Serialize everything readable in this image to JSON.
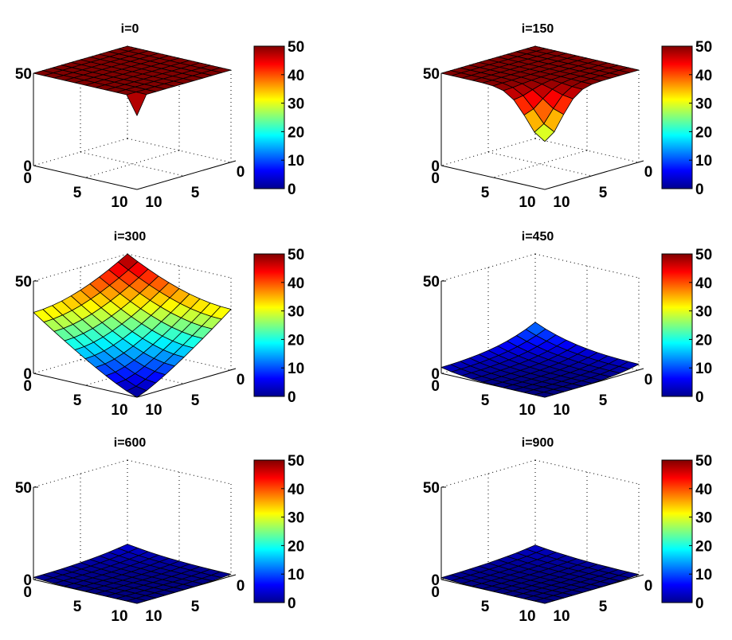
{
  "chart_data": [
    {
      "type": "surface",
      "title": "i=0",
      "x": [
        0,
        10
      ],
      "y": [
        0,
        10
      ],
      "zlim": [
        0,
        50
      ],
      "grid_size": 11,
      "surface": {
        "model": "point_dip",
        "level": 50,
        "dip_at": [
          10,
          10
        ],
        "dip_value": 40
      },
      "ticks": {
        "z": [
          "0",
          "50"
        ],
        "x": [
          "0",
          "5",
          "10"
        ],
        "y": [
          "10",
          "5",
          "0"
        ]
      },
      "colorbar": {
        "clim": [
          0,
          50
        ],
        "ticks": [
          "50",
          "40",
          "30",
          "20",
          "10",
          "0"
        ]
      }
    },
    {
      "type": "surface",
      "title": "i=150",
      "x": [
        0,
        10
      ],
      "y": [
        0,
        10
      ],
      "zlim": [
        0,
        50
      ],
      "grid_size": 11,
      "surface": {
        "model": "gaussian_dip",
        "level": 50,
        "dip_at": [
          10,
          10
        ],
        "depth": 24,
        "width2": 6
      },
      "ticks": {
        "z": [
          "0",
          "50"
        ],
        "x": [
          "0",
          "5",
          "10"
        ],
        "y": [
          "10",
          "5",
          "0"
        ]
      },
      "colorbar": {
        "clim": [
          0,
          50
        ],
        "ticks": [
          "50",
          "40",
          "30",
          "20",
          "10",
          "0"
        ]
      }
    },
    {
      "type": "surface",
      "title": "i=300",
      "x": [
        0,
        10
      ],
      "y": [
        0,
        10
      ],
      "zlim": [
        0,
        50
      ],
      "grid_size": 11,
      "surface": {
        "model": "power_from_corner",
        "corner": [
          10,
          10
        ],
        "min": 0,
        "max": 50,
        "power": 1.2
      },
      "ticks": {
        "z": [
          "0",
          "50"
        ],
        "x": [
          "0",
          "5",
          "10"
        ],
        "y": [
          "10",
          "5",
          "0"
        ]
      },
      "colorbar": {
        "clim": [
          0,
          50
        ],
        "ticks": [
          "50",
          "40",
          "30",
          "20",
          "10",
          "0"
        ]
      }
    },
    {
      "type": "surface",
      "title": "i=450",
      "x": [
        0,
        10
      ],
      "y": [
        0,
        10
      ],
      "zlim": [
        0,
        50
      ],
      "grid_size": 11,
      "surface": {
        "model": "power_from_corner",
        "corner": [
          10,
          10
        ],
        "min": 0,
        "max": 13,
        "power": 4
      },
      "ticks": {
        "z": [
          "0",
          "50"
        ],
        "x": [
          "0",
          "5",
          "10"
        ],
        "y": [
          "10",
          "5",
          "0"
        ]
      },
      "colorbar": {
        "clim": [
          0,
          50
        ],
        "ticks": [
          "50",
          "40",
          "30",
          "20",
          "10",
          "0"
        ]
      }
    },
    {
      "type": "surface",
      "title": "i=600",
      "x": [
        0,
        10
      ],
      "y": [
        0,
        10
      ],
      "zlim": [
        0,
        50
      ],
      "grid_size": 11,
      "surface": {
        "model": "power_from_corner",
        "corner": [
          10,
          10
        ],
        "min": 0,
        "max": 4.5,
        "power": 4
      },
      "ticks": {
        "z": [
          "0",
          "50"
        ],
        "x": [
          "0",
          "5",
          "10"
        ],
        "y": [
          "10",
          "5",
          "0"
        ]
      },
      "colorbar": {
        "clim": [
          0,
          50
        ],
        "ticks": [
          "50",
          "40",
          "30",
          "20",
          "10",
          "0"
        ]
      }
    },
    {
      "type": "surface",
      "title": "i=900",
      "x": [
        0,
        10
      ],
      "y": [
        0,
        10
      ],
      "zlim": [
        0,
        50
      ],
      "grid_size": 11,
      "surface": {
        "model": "power_from_corner",
        "corner": [
          10,
          10
        ],
        "min": 0,
        "max": 4,
        "power": 4
      },
      "ticks": {
        "z": [
          "0",
          "50"
        ],
        "x": [
          "0",
          "5",
          "10"
        ],
        "y": [
          "10",
          "5",
          "0"
        ]
      },
      "colorbar": {
        "clim": [
          0,
          50
        ],
        "ticks": [
          "50",
          "40",
          "30",
          "20",
          "10",
          "0"
        ]
      }
    }
  ]
}
